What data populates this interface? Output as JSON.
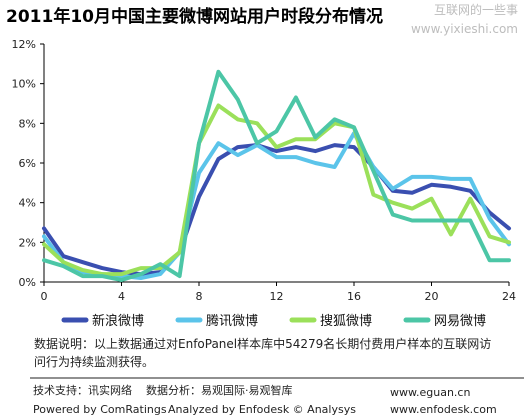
{
  "header": {
    "title": "2011年10月中国主要微博网站用户时段分布情况",
    "watermark_line1": "互联网的一些事",
    "watermark_line2": "www.yixieshi.com"
  },
  "chart_data": {
    "type": "line",
    "x": [
      0,
      1,
      2,
      3,
      4,
      5,
      6,
      7,
      8,
      9,
      10,
      11,
      12,
      13,
      14,
      15,
      16,
      17,
      18,
      19,
      20,
      21,
      22,
      23,
      24
    ],
    "xticks": [
      "0",
      "4",
      "8",
      "12",
      "16",
      "20",
      "24"
    ],
    "xtick_values": [
      0,
      4,
      8,
      12,
      16,
      20,
      24
    ],
    "yticks": [
      "0%",
      "2%",
      "4%",
      "6%",
      "8%",
      "10%",
      "12%"
    ],
    "ytick_values": [
      0,
      2,
      4,
      6,
      8,
      10,
      12
    ],
    "xlim": [
      0,
      24
    ],
    "ylim": [
      0,
      12
    ],
    "grid": "none",
    "legend_position": "bottom",
    "series": [
      {
        "name": "新浪微博",
        "color": "#3a4fb0",
        "values": [
          2.7,
          1.3,
          1.0,
          0.7,
          0.5,
          0.4,
          0.5,
          1.5,
          4.3,
          6.2,
          6.8,
          6.9,
          6.6,
          6.8,
          6.6,
          6.9,
          6.8,
          5.8,
          4.6,
          4.5,
          4.9,
          4.8,
          4.6,
          3.5,
          2.7
        ]
      },
      {
        "name": "腾讯微博",
        "color": "#5bc4ea",
        "values": [
          2.3,
          1.0,
          0.5,
          0.4,
          0.3,
          0.2,
          0.4,
          1.5,
          5.5,
          7.0,
          6.4,
          6.9,
          6.3,
          6.3,
          6.0,
          5.8,
          7.5,
          5.8,
          4.7,
          5.3,
          5.3,
          5.2,
          5.2,
          3.2,
          1.9
        ]
      },
      {
        "name": "搜狐微博",
        "color": "#9be05a",
        "values": [
          1.9,
          1.0,
          0.6,
          0.4,
          0.4,
          0.7,
          0.7,
          1.5,
          7.0,
          8.9,
          8.2,
          8.0,
          6.8,
          7.2,
          7.2,
          8.0,
          7.8,
          4.4,
          4.0,
          3.7,
          4.2,
          2.4,
          4.2,
          2.3,
          2.0
        ]
      },
      {
        "name": "网易微博",
        "color": "#4cc6a6",
        "values": [
          1.1,
          0.8,
          0.3,
          0.3,
          0.1,
          0.4,
          0.9,
          0.3,
          7.0,
          10.6,
          9.2,
          7.0,
          7.6,
          9.3,
          7.3,
          8.2,
          7.8,
          5.6,
          3.4,
          3.1,
          3.1,
          3.1,
          3.1,
          1.1,
          1.1
        ]
      }
    ]
  },
  "note": {
    "line1": "数据说明：以上数据通过对EnfoPanel样本库中54279名长期付费用户样本的互联网访",
    "line2": "问行为持续监测获得。"
  },
  "footer": {
    "tech_support": "技术支持：讯实网络",
    "analysis": "数据分析：易观国际·易观智库",
    "site1": "www.eguan.cn",
    "powered": "Powered by ComRatings",
    "analyzed": "Analyzed by Enfodesk © Analysys",
    "site2": "www.enfodesk.com"
  }
}
